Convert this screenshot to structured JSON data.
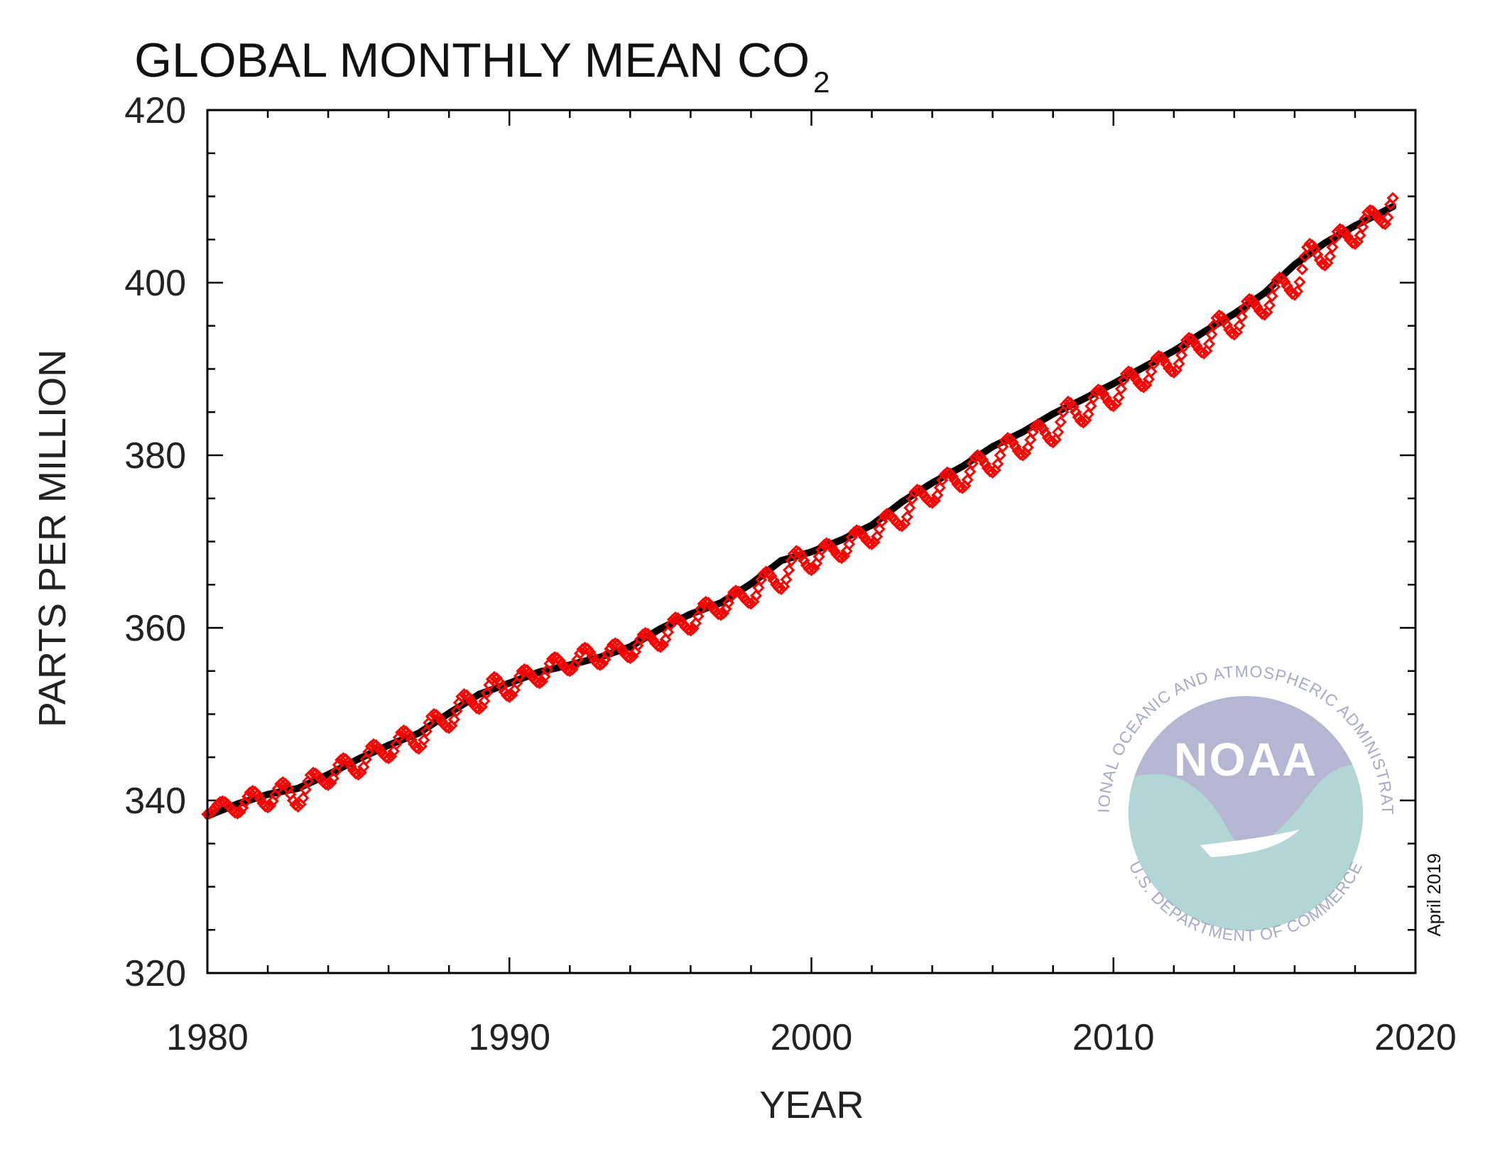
{
  "chart_data": {
    "type": "scatter",
    "title_main": "GLOBAL MONTHLY MEAN CO",
    "title_sub": "2",
    "xlabel": "YEAR",
    "ylabel": "PARTS PER MILLION",
    "xlim": [
      1980,
      2020
    ],
    "ylim": [
      320,
      420
    ],
    "x_ticks": [
      1980,
      1990,
      2000,
      2010,
      2020
    ],
    "y_ticks": [
      320,
      340,
      360,
      380,
      400,
      420
    ],
    "grid": false,
    "legend": "none",
    "note": "April 2019",
    "series": [
      {
        "marker": "red diamonds",
        "color": "#ff0000",
        "description_type": "monthly mean (seasonal)",
        "x": [
          1980.0,
          1980.5,
          1981.0,
          1981.5,
          1982.0,
          1982.5,
          1983.0,
          1983.5,
          1984.0,
          1984.5,
          1985.0,
          1985.5,
          1986.0,
          1986.5,
          1987.0,
          1987.5,
          1988.0,
          1988.5,
          1989.0,
          1989.5,
          1990.0,
          1990.5,
          1991.0,
          1991.5,
          1992.0,
          1992.5,
          1993.0,
          1993.5,
          1994.0,
          1994.5,
          1995.0,
          1995.5,
          1996.0,
          1996.5,
          1997.0,
          1997.5,
          1998.0,
          1998.5,
          1999.0,
          1999.5,
          2000.0,
          2000.5,
          2001.0,
          2001.5,
          2002.0,
          2002.5,
          2003.0,
          2003.5,
          2004.0,
          2004.5,
          2005.0,
          2005.5,
          2006.0,
          2006.5,
          2007.0,
          2007.5,
          2008.0,
          2008.5,
          2009.0,
          2009.5,
          2010.0,
          2010.5,
          2011.0,
          2011.5,
          2012.0,
          2012.5,
          2013.0,
          2013.5,
          2014.0,
          2014.5,
          2015.0,
          2015.5,
          2016.0,
          2016.5,
          2017.0,
          2017.5,
          2018.0,
          2018.5,
          2019.0,
          2019.25
        ],
        "y": [
          338.4,
          339.9,
          338.5,
          341.1,
          339.2,
          342.1,
          339.3,
          343.2,
          341.8,
          344.9,
          343.0,
          346.5,
          344.9,
          348.1,
          346.0,
          350.0,
          348.4,
          352.3,
          350.6,
          354.3,
          352.0,
          355.2,
          353.6,
          356.6,
          355.0,
          357.7,
          355.7,
          358.2,
          356.5,
          359.4,
          357.8,
          361.2,
          359.7,
          363.0,
          361.5,
          364.3,
          362.8,
          366.5,
          364.5,
          368.9,
          366.7,
          369.8,
          368.1,
          371.3,
          369.7,
          373.2,
          371.8,
          376.0,
          374.5,
          378.0,
          376.2,
          380.0,
          378.0,
          382.0,
          380.0,
          383.6,
          381.5,
          386.2,
          383.8,
          387.6,
          385.7,
          389.7,
          387.9,
          391.5,
          389.6,
          393.6,
          391.8,
          396.2,
          394.0,
          398.1,
          396.3,
          400.6,
          398.6,
          404.5,
          402.0,
          406.2,
          404.5,
          408.4,
          406.8,
          409.8
        ]
      },
      {
        "marker": "black dots",
        "color": "#000000",
        "description_type": "deseasonalized trend",
        "x": [
          1980.0,
          1981.0,
          1982.0,
          1983.0,
          1984.0,
          1985.0,
          1986.0,
          1987.0,
          1988.0,
          1989.0,
          1990.0,
          1991.0,
          1992.0,
          1993.0,
          1994.0,
          1995.0,
          1996.0,
          1997.0,
          1998.0,
          1999.0,
          2000.0,
          2001.0,
          2002.0,
          2003.0,
          2004.0,
          2005.0,
          2006.0,
          2007.0,
          2008.0,
          2009.0,
          2010.0,
          2011.0,
          2012.0,
          2013.0,
          2014.0,
          2015.0,
          2016.0,
          2017.0,
          2018.0,
          2019.25
        ],
        "y": [
          338.2,
          339.6,
          340.7,
          341.4,
          343.0,
          344.8,
          346.4,
          347.8,
          350.1,
          352.3,
          353.6,
          354.9,
          355.7,
          356.6,
          357.8,
          359.9,
          361.6,
          362.9,
          365.1,
          367.8,
          368.8,
          370.2,
          371.9,
          374.6,
          376.8,
          378.7,
          381.0,
          382.7,
          384.8,
          386.5,
          388.3,
          390.2,
          392.1,
          394.3,
          396.4,
          398.8,
          402.1,
          404.6,
          406.6,
          408.8
        ]
      }
    ]
  },
  "logo": {
    "name": "noaa-logo",
    "word": "NOAA",
    "ring_text_top": "NATIONAL OCEANIC AND ATMOSPHERIC ADMINISTRATION",
    "ring_text_bottom": "U.S. DEPARTMENT OF COMMERCE",
    "color_sky": "#b5b6d1",
    "color_sea": "#b2d6d6",
    "color_text": "#a7a9c8"
  }
}
